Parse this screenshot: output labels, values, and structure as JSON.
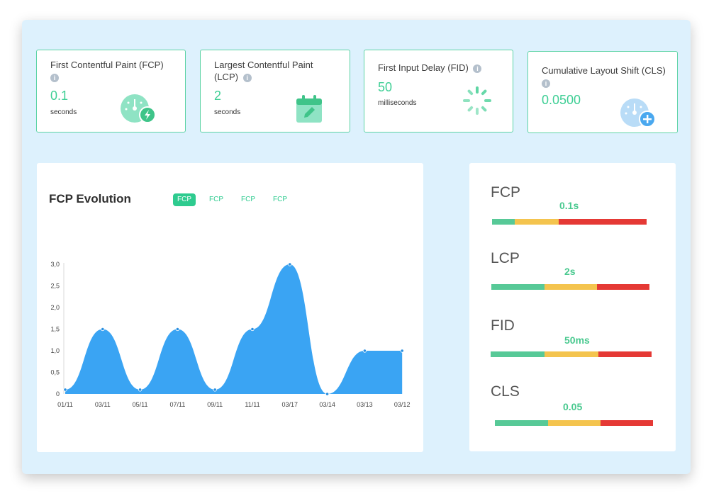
{
  "metrics": [
    {
      "title": "First Contentful Paint (FCP)",
      "value": "0.1",
      "unit": "seconds",
      "icon": "speedometer-bolt-icon"
    },
    {
      "title": "Largest Contentful Paint (LCP)",
      "value": "2",
      "unit": "seconds",
      "icon": "calendar-edit-icon"
    },
    {
      "title": "First Input Delay (FID)",
      "value": "50",
      "unit": "milliseconds",
      "icon": "loading-spinner-icon"
    },
    {
      "title": "Cumulative Layout Shift (CLS)",
      "value": "0.0500",
      "unit": "",
      "icon": "speedometer-plus-icon"
    }
  ],
  "info_icon": "i",
  "chart": {
    "title": "FCP Evolution",
    "tabs": [
      "FCP",
      "FCP",
      "FCP",
      "FCP"
    ],
    "active_tab": 0
  },
  "chart_data": {
    "type": "area",
    "title": "FCP Evolution",
    "categories": [
      "01/11",
      "03/11",
      "05/11",
      "07/11",
      "09/11",
      "11/11",
      "03/17",
      "03/14",
      "03/13",
      "03/12"
    ],
    "values": [
      0.1,
      1.5,
      0.1,
      1.5,
      0.1,
      1.5,
      3.0,
      0,
      1.0,
      1.0
    ],
    "y_ticks": [
      "0",
      "0,5",
      "1,0",
      "1,5",
      "2,0",
      "2,5",
      "3,0"
    ],
    "ylim": [
      0,
      3
    ],
    "color": "#3aa4f3",
    "grid": false
  },
  "summary": [
    {
      "label": "FCP",
      "value": "0.1s"
    },
    {
      "label": "LCP",
      "value": "2s"
    },
    {
      "label": "FID",
      "value": "50ms"
    },
    {
      "label": "CLS",
      "value": "0.05"
    }
  ],
  "colors": {
    "accent": "#3fcf95",
    "good": "#57c997",
    "needs_improvement": "#f4c44e",
    "poor": "#e53935",
    "chart_fill": "#3aa4f3",
    "panel_bg": "#ddf1fd"
  }
}
